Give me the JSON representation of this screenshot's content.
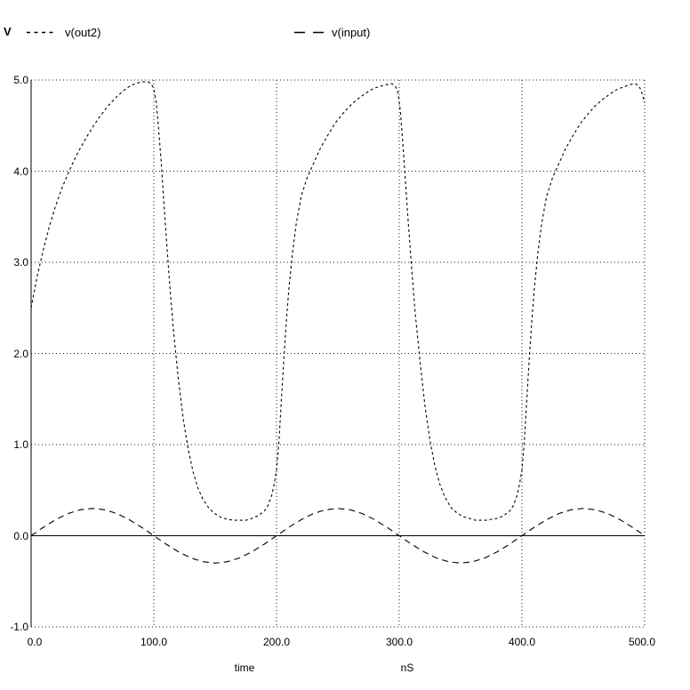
{
  "colors": {
    "background": "#ffffff",
    "foreground": "#000000",
    "grid": "#1a1a1a"
  },
  "legend": {
    "y_unit": "V",
    "items": [
      {
        "label": "v(out2)",
        "dash": "short"
      },
      {
        "label": "v(input)",
        "dash": "long"
      }
    ]
  },
  "axes": {
    "x": {
      "ticks": [
        "0.0",
        "100.0",
        "200.0",
        "300.0",
        "400.0",
        "500.0"
      ],
      "title": "time",
      "unit": "nS"
    },
    "y": {
      "ticks": [
        "5.0",
        "4.0",
        "3.0",
        "2.0",
        "1.0",
        "0.0",
        "-1.0"
      ]
    }
  },
  "chart_data": {
    "type": "line",
    "title": "",
    "xlabel": "time",
    "x_unit": "nS",
    "ylabel": "V",
    "xlim": [
      0,
      500
    ],
    "ylim": [
      -1,
      5
    ],
    "x_gridlines": [
      100,
      200,
      300,
      400,
      500
    ],
    "y_gridlines": [
      5,
      4,
      3,
      2,
      1,
      -1
    ],
    "y_solid_line": 0,
    "grid": true,
    "legend_position": "top",
    "series": [
      {
        "name": "v(out2)",
        "style": "short-dash",
        "points": [
          [
            0,
            2.5
          ],
          [
            5,
            2.85
          ],
          [
            10,
            3.14
          ],
          [
            15,
            3.4
          ],
          [
            20,
            3.62
          ],
          [
            25,
            3.81
          ],
          [
            30,
            3.97
          ],
          [
            35,
            4.12
          ],
          [
            40,
            4.25
          ],
          [
            45,
            4.37
          ],
          [
            50,
            4.48
          ],
          [
            55,
            4.58
          ],
          [
            60,
            4.67
          ],
          [
            65,
            4.75
          ],
          [
            70,
            4.82
          ],
          [
            75,
            4.88
          ],
          [
            80,
            4.93
          ],
          [
            85,
            4.96
          ],
          [
            90,
            4.98
          ],
          [
            95,
            4.98
          ],
          [
            98,
            4.96
          ],
          [
            100,
            4.9
          ],
          [
            102,
            4.75
          ],
          [
            104,
            4.45
          ],
          [
            106,
            4.1
          ],
          [
            108,
            3.7
          ],
          [
            110,
            3.3
          ],
          [
            113,
            2.75
          ],
          [
            116,
            2.25
          ],
          [
            120,
            1.72
          ],
          [
            124,
            1.28
          ],
          [
            128,
            0.95
          ],
          [
            132,
            0.7
          ],
          [
            136,
            0.52
          ],
          [
            140,
            0.4
          ],
          [
            145,
            0.3
          ],
          [
            150,
            0.24
          ],
          [
            155,
            0.2
          ],
          [
            160,
            0.18
          ],
          [
            165,
            0.17
          ],
          [
            170,
            0.17
          ],
          [
            175,
            0.17
          ],
          [
            180,
            0.19
          ],
          [
            185,
            0.22
          ],
          [
            190,
            0.27
          ],
          [
            193,
            0.33
          ],
          [
            196,
            0.44
          ],
          [
            198,
            0.56
          ],
          [
            200,
            0.72
          ],
          [
            202,
            1.05
          ],
          [
            204,
            1.5
          ],
          [
            206,
            1.95
          ],
          [
            208,
            2.35
          ],
          [
            210,
            2.7
          ],
          [
            213,
            3.1
          ],
          [
            216,
            3.42
          ],
          [
            220,
            3.72
          ],
          [
            225,
            3.93
          ],
          [
            230,
            4.08
          ],
          [
            236,
            4.26
          ],
          [
            242,
            4.4
          ],
          [
            248,
            4.53
          ],
          [
            254,
            4.63
          ],
          [
            260,
            4.72
          ],
          [
            266,
            4.79
          ],
          [
            272,
            4.85
          ],
          [
            278,
            4.9
          ],
          [
            284,
            4.93
          ],
          [
            290,
            4.95
          ],
          [
            294,
            4.96
          ],
          [
            297,
            4.93
          ],
          [
            299,
            4.86
          ],
          [
            301,
            4.65
          ],
          [
            303,
            4.3
          ],
          [
            305,
            3.9
          ],
          [
            307,
            3.5
          ],
          [
            310,
            2.95
          ],
          [
            313,
            2.45
          ],
          [
            317,
            1.9
          ],
          [
            321,
            1.42
          ],
          [
            325,
            1.05
          ],
          [
            329,
            0.77
          ],
          [
            333,
            0.57
          ],
          [
            337,
            0.43
          ],
          [
            342,
            0.31
          ],
          [
            347,
            0.25
          ],
          [
            352,
            0.21
          ],
          [
            357,
            0.19
          ],
          [
            362,
            0.17
          ],
          [
            367,
            0.17
          ],
          [
            372,
            0.17
          ],
          [
            375,
            0.18
          ],
          [
            380,
            0.19
          ],
          [
            385,
            0.22
          ],
          [
            390,
            0.27
          ],
          [
            393,
            0.33
          ],
          [
            396,
            0.44
          ],
          [
            398,
            0.56
          ],
          [
            400,
            0.72
          ],
          [
            402,
            1.05
          ],
          [
            404,
            1.5
          ],
          [
            406,
            1.95
          ],
          [
            408,
            2.35
          ],
          [
            410,
            2.7
          ],
          [
            413,
            3.1
          ],
          [
            416,
            3.42
          ],
          [
            420,
            3.72
          ],
          [
            425,
            3.93
          ],
          [
            430,
            4.08
          ],
          [
            436,
            4.26
          ],
          [
            442,
            4.4
          ],
          [
            448,
            4.53
          ],
          [
            454,
            4.63
          ],
          [
            460,
            4.72
          ],
          [
            466,
            4.79
          ],
          [
            472,
            4.85
          ],
          [
            478,
            4.9
          ],
          [
            484,
            4.93
          ],
          [
            488,
            4.95
          ],
          [
            492,
            4.96
          ],
          [
            495,
            4.94
          ],
          [
            497,
            4.89
          ],
          [
            499,
            4.8
          ],
          [
            500,
            4.75
          ]
        ]
      },
      {
        "name": "v(input)",
        "style": "long-dash",
        "points": [
          [
            0,
            0
          ],
          [
            10,
            0.093
          ],
          [
            20,
            0.176
          ],
          [
            30,
            0.243
          ],
          [
            40,
            0.285
          ],
          [
            50,
            0.3
          ],
          [
            60,
            0.285
          ],
          [
            70,
            0.243
          ],
          [
            80,
            0.176
          ],
          [
            90,
            0.093
          ],
          [
            100,
            0
          ],
          [
            110,
            -0.093
          ],
          [
            120,
            -0.176
          ],
          [
            130,
            -0.243
          ],
          [
            140,
            -0.285
          ],
          [
            150,
            -0.3
          ],
          [
            160,
            -0.285
          ],
          [
            170,
            -0.243
          ],
          [
            180,
            -0.176
          ],
          [
            190,
            -0.093
          ],
          [
            200,
            0
          ],
          [
            210,
            0.093
          ],
          [
            220,
            0.176
          ],
          [
            230,
            0.243
          ],
          [
            240,
            0.285
          ],
          [
            250,
            0.3
          ],
          [
            260,
            0.285
          ],
          [
            270,
            0.243
          ],
          [
            280,
            0.176
          ],
          [
            290,
            0.093
          ],
          [
            300,
            0
          ],
          [
            310,
            -0.093
          ],
          [
            320,
            -0.176
          ],
          [
            330,
            -0.243
          ],
          [
            340,
            -0.285
          ],
          [
            350,
            -0.3
          ],
          [
            360,
            -0.285
          ],
          [
            370,
            -0.243
          ],
          [
            380,
            -0.176
          ],
          [
            390,
            -0.093
          ],
          [
            400,
            0
          ],
          [
            410,
            0.093
          ],
          [
            420,
            0.176
          ],
          [
            430,
            0.243
          ],
          [
            440,
            0.285
          ],
          [
            450,
            0.3
          ],
          [
            460,
            0.285
          ],
          [
            470,
            0.243
          ],
          [
            480,
            0.176
          ],
          [
            490,
            0.093
          ],
          [
            500,
            0
          ]
        ]
      }
    ]
  }
}
